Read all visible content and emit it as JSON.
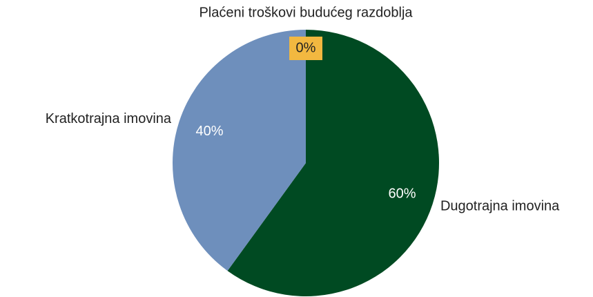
{
  "chart_data": {
    "type": "pie",
    "categories": [
      "Dugotrajna imovina",
      "Kratkotrajna imovina",
      "Plaćeni troškovi budućeg razdoblja"
    ],
    "values": [
      60,
      40,
      0
    ],
    "value_labels": [
      "60%",
      "40%",
      "0%"
    ],
    "colors": [
      "#004a22",
      "#6e8fbc",
      "#f2b840"
    ]
  }
}
